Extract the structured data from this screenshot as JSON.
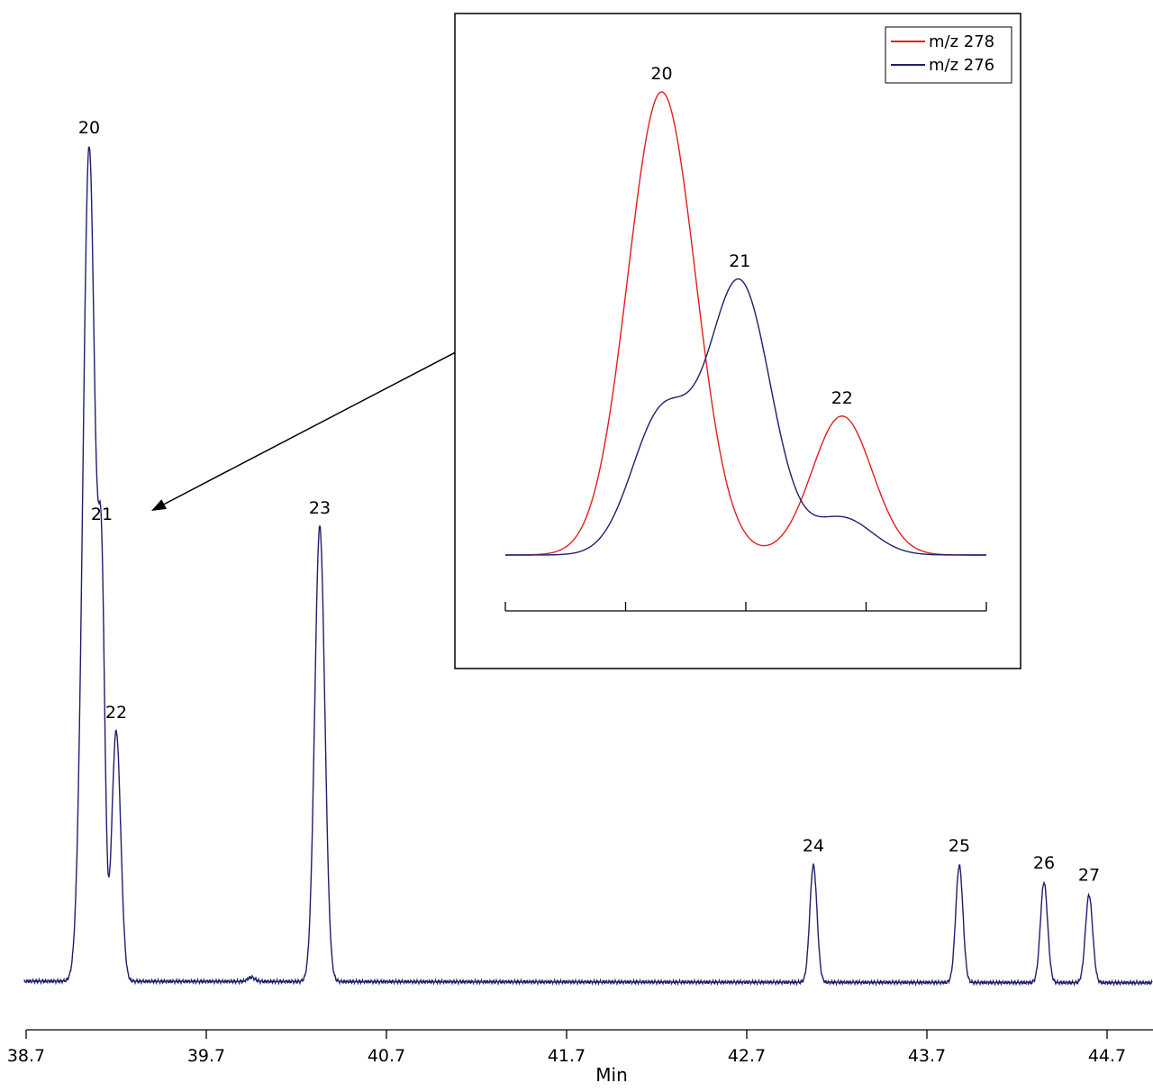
{
  "chart_data": [
    {
      "type": "line",
      "name": "main-chromatogram",
      "title": "",
      "xlabel": "Min",
      "ylabel": "",
      "xlim": [
        38.7,
        44.95
      ],
      "ylim": [
        0,
        100
      ],
      "x_ticks": [
        38.7,
        39.7,
        40.7,
        41.7,
        42.7,
        43.7,
        44.7
      ],
      "x_tick_labels": [
        "38.7",
        "39.7",
        "40.7",
        "41.7",
        "42.7",
        "43.7",
        "44.7"
      ],
      "grid": false,
      "color": "#1f1f6e",
      "baseline": 0,
      "peaks": [
        {
          "label": "20",
          "x": 39.05,
          "y": 100.0,
          "width": 0.035
        },
        {
          "label": "21",
          "x": 39.12,
          "y": 40.0,
          "width": 0.018
        },
        {
          "label": "22",
          "x": 39.2,
          "y": 30.0,
          "width": 0.025
        },
        {
          "label": "",
          "x": 39.95,
          "y": 0.5,
          "width": 0.02
        },
        {
          "label": "23",
          "x": 40.33,
          "y": 54.5,
          "width": 0.028
        },
        {
          "label": "24",
          "x": 43.07,
          "y": 14.0,
          "width": 0.02
        },
        {
          "label": "25",
          "x": 43.88,
          "y": 14.0,
          "width": 0.02
        },
        {
          "label": "26",
          "x": 44.35,
          "y": 12.0,
          "width": 0.02
        },
        {
          "label": "27",
          "x": 44.6,
          "y": 10.5,
          "width": 0.02
        }
      ]
    },
    {
      "type": "line",
      "name": "inset-zoom",
      "title": "",
      "xlabel": "",
      "ylabel": "",
      "xlim": [
        0,
        4
      ],
      "ylim": [
        0,
        100
      ],
      "x_ticks": [
        0,
        1,
        2,
        3,
        4
      ],
      "x_tick_labels": [
        "",
        "",
        "",
        "",
        ""
      ],
      "grid": false,
      "legend_position": "top-right",
      "series": [
        {
          "name": "m/z 278",
          "color": "#e0201e",
          "peaks": [
            {
              "label": "20",
              "x": 1.3,
              "y": 100.0,
              "sigma": 0.28
            },
            {
              "label": "22",
              "x": 2.8,
              "y": 30.0,
              "sigma": 0.25
            }
          ]
        },
        {
          "name": "m/z 276",
          "color": "#1f1f6e",
          "peaks": [
            {
              "label": "",
              "x": 1.3,
              "y": 30.0,
              "sigma": 0.25
            },
            {
              "label": "21",
              "x": 1.95,
              "y": 58.5,
              "sigma": 0.26
            },
            {
              "label": "",
              "x": 2.8,
              "y": 8.0,
              "sigma": 0.25
            }
          ]
        }
      ]
    }
  ]
}
